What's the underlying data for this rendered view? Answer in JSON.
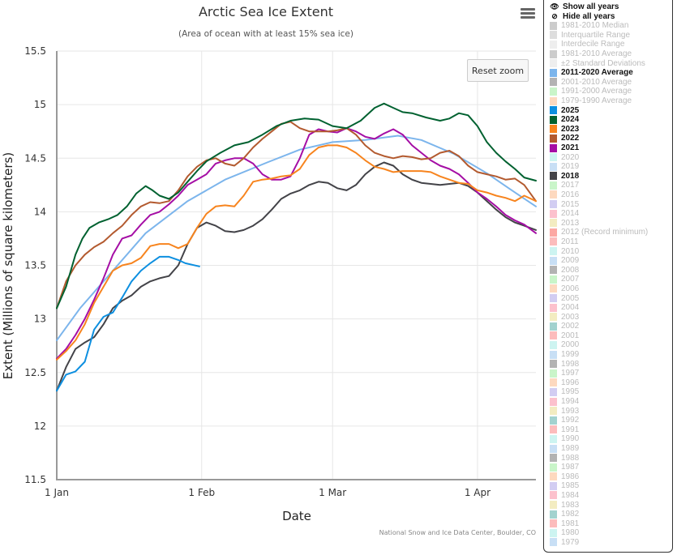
{
  "chart_data": {
    "type": "line",
    "title": "Arctic Sea Ice Extent",
    "subtitle": "(Area of ocean with at least 15% sea ice)",
    "xlabel": "Date",
    "ylabel": "Extent (Millions of square kilometers)",
    "credit": "National Snow and Ice Data Center, Boulder, CO",
    "x_unit": "day of year (0 = 1 Jan)",
    "xlim": [
      0,
      102.5
    ],
    "ylim": [
      11.5,
      15.5
    ],
    "x_ticks": [
      {
        "day": 0,
        "label": "1 Jan"
      },
      {
        "day": 31,
        "label": "1 Feb"
      },
      {
        "day": 59,
        "label": "1 Mar"
      },
      {
        "day": 90,
        "label": "1 Apr"
      }
    ],
    "y_ticks": [
      {
        "value": 15.5,
        "label": "15.5"
      },
      {
        "value": 15,
        "label": "15"
      },
      {
        "value": 14.5,
        "label": "14.5"
      },
      {
        "value": 14,
        "label": "14"
      },
      {
        "value": 13.5,
        "label": "13.5"
      },
      {
        "value": 13,
        "label": "13"
      },
      {
        "value": 12.5,
        "label": "12.5"
      },
      {
        "value": 12,
        "label": "12"
      },
      {
        "value": 11.5,
        "label": "11.5"
      }
    ],
    "grid": true,
    "legend_position": "right",
    "series": [
      {
        "name": "2011-2020 Average",
        "color": "#7cb5ec",
        "x": [
          0,
          5,
          12,
          19,
          28,
          36,
          45,
          52,
          59,
          66,
          73,
          78,
          85,
          92,
          97,
          102.5
        ],
        "y": [
          12.8,
          13.1,
          13.45,
          13.8,
          14.1,
          14.3,
          14.46,
          14.58,
          14.65,
          14.67,
          14.71,
          14.67,
          14.54,
          14.36,
          14.21,
          14.05
        ]
      },
      {
        "name": "2025",
        "color": "#0d8fe0",
        "x": [
          0,
          2,
          4,
          6,
          8,
          10,
          12,
          14,
          16,
          18,
          20,
          22,
          24,
          26,
          27.5,
          30.5
        ],
        "y": [
          12.33,
          12.48,
          12.51,
          12.6,
          12.9,
          13.02,
          13.06,
          13.2,
          13.35,
          13.45,
          13.52,
          13.58,
          13.58,
          13.55,
          13.52,
          13.49
        ]
      },
      {
        "name": "2024",
        "color": "#006130",
        "x": [
          0,
          2,
          4,
          5.5,
          7,
          9,
          11,
          13,
          15,
          17,
          19,
          20.5,
          22,
          24,
          26,
          28,
          30,
          32,
          35,
          38,
          41,
          44,
          47,
          50,
          53,
          56,
          59,
          62,
          65,
          68,
          70,
          72,
          74,
          76,
          79,
          82,
          84,
          86,
          88,
          90,
          92,
          94,
          96,
          98,
          100,
          102.5
        ],
        "y": [
          13.1,
          13.3,
          13.6,
          13.75,
          13.85,
          13.9,
          13.93,
          13.97,
          14.05,
          14.17,
          14.24,
          14.2,
          14.15,
          14.12,
          14.18,
          14.28,
          14.38,
          14.47,
          14.55,
          14.62,
          14.65,
          14.72,
          14.8,
          14.85,
          14.87,
          14.86,
          14.8,
          14.78,
          14.85,
          14.97,
          15.01,
          14.97,
          14.93,
          14.92,
          14.88,
          14.85,
          14.87,
          14.92,
          14.9,
          14.8,
          14.65,
          14.55,
          14.47,
          14.4,
          14.32,
          14.29
        ]
      },
      {
        "name": "2023",
        "color": "#f7841e",
        "x": [
          0,
          2,
          4,
          6,
          8,
          10,
          12,
          14,
          16,
          18,
          20,
          22,
          24,
          26,
          28,
          30,
          32,
          34,
          36,
          38,
          40,
          42,
          44,
          46,
          48,
          50,
          52,
          54,
          56,
          58,
          60,
          62,
          64,
          66,
          68,
          70,
          72,
          74,
          76,
          78,
          80,
          82,
          84,
          86,
          88,
          90,
          92,
          94,
          96,
          98,
          100,
          102.5
        ],
        "y": [
          12.62,
          12.7,
          12.8,
          12.95,
          13.15,
          13.3,
          13.45,
          13.5,
          13.52,
          13.57,
          13.68,
          13.7,
          13.7,
          13.66,
          13.7,
          13.85,
          13.98,
          14.05,
          14.06,
          14.05,
          14.15,
          14.28,
          14.3,
          14.31,
          14.33,
          14.34,
          14.4,
          14.53,
          14.6,
          14.62,
          14.62,
          14.6,
          14.55,
          14.48,
          14.42,
          14.4,
          14.37,
          14.38,
          14.38,
          14.38,
          14.37,
          14.33,
          14.3,
          14.27,
          14.26,
          14.2,
          14.18,
          14.15,
          14.13,
          14.1,
          14.15,
          14.1
        ]
      },
      {
        "name": "2022",
        "color": "#b35a2f",
        "x": [
          0,
          2,
          4,
          6,
          8,
          10,
          12,
          14,
          16,
          18,
          20,
          22,
          24,
          26,
          28,
          30,
          32,
          34,
          36,
          38,
          40,
          42,
          44,
          46,
          48,
          50,
          52,
          54,
          56,
          58,
          60,
          62,
          64,
          66,
          68,
          70,
          72,
          74,
          76,
          78,
          80,
          82,
          84,
          86,
          88,
          90,
          92,
          94,
          96,
          98,
          100,
          102.5
        ],
        "y": [
          13.1,
          13.35,
          13.5,
          13.6,
          13.67,
          13.72,
          13.8,
          13.87,
          13.97,
          14.05,
          14.09,
          14.08,
          14.1,
          14.2,
          14.33,
          14.42,
          14.48,
          14.5,
          14.45,
          14.43,
          14.5,
          14.6,
          14.68,
          14.75,
          14.82,
          14.84,
          14.78,
          14.75,
          14.75,
          14.75,
          14.76,
          14.78,
          14.72,
          14.62,
          14.55,
          14.52,
          14.5,
          14.52,
          14.51,
          14.49,
          14.5,
          14.55,
          14.57,
          14.52,
          14.43,
          14.37,
          14.35,
          14.33,
          14.3,
          14.31,
          14.25,
          14.1
        ]
      },
      {
        "name": "2021",
        "color": "#a50ea5",
        "x": [
          0,
          2,
          4,
          6,
          8,
          10,
          12,
          14,
          16,
          18,
          20,
          22,
          24,
          26,
          28,
          30,
          32,
          34,
          36,
          38,
          40,
          42,
          44,
          46,
          48,
          50,
          52,
          54,
          56,
          58,
          60,
          62,
          64,
          66,
          68,
          70,
          72,
          74,
          76,
          78,
          80,
          82,
          84,
          86,
          88,
          90,
          92,
          94,
          96,
          98,
          100,
          102.5
        ],
        "y": [
          12.63,
          12.72,
          12.85,
          13.0,
          13.18,
          13.38,
          13.6,
          13.75,
          13.78,
          13.88,
          13.97,
          14.0,
          14.07,
          14.15,
          14.25,
          14.3,
          14.35,
          14.45,
          14.48,
          14.5,
          14.5,
          14.45,
          14.35,
          14.3,
          14.3,
          14.33,
          14.5,
          14.72,
          14.77,
          14.75,
          14.74,
          14.78,
          14.75,
          14.7,
          14.68,
          14.73,
          14.77,
          14.72,
          14.62,
          14.55,
          14.48,
          14.43,
          14.4,
          14.35,
          14.27,
          14.18,
          14.12,
          14.05,
          13.97,
          13.92,
          13.88,
          13.8
        ]
      },
      {
        "name": "2018",
        "color": "#434348",
        "x": [
          0,
          2,
          4,
          6,
          8,
          10,
          12,
          14,
          16,
          18,
          20,
          22,
          24,
          26,
          28,
          30,
          32,
          34,
          36,
          38,
          40,
          42,
          44,
          46,
          48,
          50,
          52,
          54,
          56,
          58,
          60,
          62,
          64,
          66,
          68,
          70,
          72,
          74,
          76,
          78,
          80,
          82,
          84,
          86,
          88,
          90,
          92,
          94,
          96,
          98,
          100,
          102.5
        ],
        "y": [
          12.33,
          12.55,
          12.72,
          12.78,
          12.83,
          12.95,
          13.1,
          13.17,
          13.22,
          13.3,
          13.35,
          13.38,
          13.4,
          13.5,
          13.7,
          13.85,
          13.9,
          13.87,
          13.82,
          13.81,
          13.83,
          13.87,
          13.93,
          14.02,
          14.12,
          14.17,
          14.2,
          14.25,
          14.28,
          14.27,
          14.22,
          14.2,
          14.25,
          14.35,
          14.42,
          14.46,
          14.43,
          14.35,
          14.3,
          14.27,
          14.26,
          14.25,
          14.26,
          14.27,
          14.24,
          14.18,
          14.1,
          14.02,
          13.95,
          13.9,
          13.87,
          13.83
        ]
      }
    ]
  },
  "toolbar": {
    "menu_icon": "hamburger-menu-icon",
    "reset_zoom": "Reset zoom"
  },
  "legend": {
    "actions": [
      {
        "label": "Show all years",
        "icon": "eye-icon"
      },
      {
        "label": "Hide all years",
        "icon": "eye-slash-icon"
      }
    ],
    "items": [
      {
        "label": "1981-2010 Median",
        "color": "#cccccc",
        "visible": false
      },
      {
        "label": "Interquartile Range",
        "color": "#dddddd",
        "visible": false
      },
      {
        "label": "Interdecile Range",
        "color": "#eeeeee",
        "visible": false
      },
      {
        "label": "1981-2010 Average",
        "color": "#cccccc",
        "visible": false
      },
      {
        "label": "±2 Standard Deviations",
        "color": "#eeeeee",
        "visible": false
      },
      {
        "label": "2011-2020 Average",
        "color": "#7cb5ec",
        "visible": true
      },
      {
        "label": "2001-2010 Average",
        "color": "#b3b3b3",
        "visible": false
      },
      {
        "label": "1991-2000 Average",
        "color": "#c9f5c9",
        "visible": false
      },
      {
        "label": "1979-1990 Average",
        "color": "#fdd9bf",
        "visible": false
      },
      {
        "label": "2025",
        "color": "#0d8fe0",
        "visible": true
      },
      {
        "label": "2024",
        "color": "#006130",
        "visible": true
      },
      {
        "label": "2023",
        "color": "#f7841e",
        "visible": true
      },
      {
        "label": "2022",
        "color": "#b35a2f",
        "visible": true
      },
      {
        "label": "2021",
        "color": "#a50ea5",
        "visible": true
      },
      {
        "label": "2020",
        "color": "#cdf4f1",
        "visible": false
      },
      {
        "label": "2019",
        "color": "#c8dff5",
        "visible": false
      },
      {
        "label": "2018",
        "color": "#434348",
        "visible": true
      },
      {
        "label": "2017",
        "color": "#c9f5c9",
        "visible": false
      },
      {
        "label": "2016",
        "color": "#fdd9bf",
        "visible": false
      },
      {
        "label": "2015",
        "color": "#d2cdf2",
        "visible": false
      },
      {
        "label": "2014",
        "color": "#fcc1cd",
        "visible": false
      },
      {
        "label": "2013",
        "color": "#f3ecc1",
        "visible": false
      },
      {
        "label": "2012 (Record minimum)",
        "color": "#fca8a3",
        "visible": false
      },
      {
        "label": "2011",
        "color": "#fcbcbc",
        "visible": false
      },
      {
        "label": "2010",
        "color": "#cdf4f1",
        "visible": false
      },
      {
        "label": "2009",
        "color": "#c8dff5",
        "visible": false
      },
      {
        "label": "2008",
        "color": "#b3b3b3",
        "visible": false
      },
      {
        "label": "2007",
        "color": "#c9f5c9",
        "visible": false
      },
      {
        "label": "2006",
        "color": "#fdd9bf",
        "visible": false
      },
      {
        "label": "2005",
        "color": "#d2cdf2",
        "visible": false
      },
      {
        "label": "2004",
        "color": "#fcc1cd",
        "visible": false
      },
      {
        "label": "2003",
        "color": "#f3ecc1",
        "visible": false
      },
      {
        "label": "2002",
        "color": "#a2d2cf",
        "visible": false
      },
      {
        "label": "2001",
        "color": "#fcbcbc",
        "visible": false
      },
      {
        "label": "2000",
        "color": "#cdf4f1",
        "visible": false
      },
      {
        "label": "1999",
        "color": "#c8dff5",
        "visible": false
      },
      {
        "label": "1998",
        "color": "#b3b3b3",
        "visible": false
      },
      {
        "label": "1997",
        "color": "#c9f5c9",
        "visible": false
      },
      {
        "label": "1996",
        "color": "#fdd9bf",
        "visible": false
      },
      {
        "label": "1995",
        "color": "#d2cdf2",
        "visible": false
      },
      {
        "label": "1994",
        "color": "#fcc1cd",
        "visible": false
      },
      {
        "label": "1993",
        "color": "#f3ecc1",
        "visible": false
      },
      {
        "label": "1992",
        "color": "#a2d2cf",
        "visible": false
      },
      {
        "label": "1991",
        "color": "#fcbcbc",
        "visible": false
      },
      {
        "label": "1990",
        "color": "#cdf4f1",
        "visible": false
      },
      {
        "label": "1989",
        "color": "#c8dff5",
        "visible": false
      },
      {
        "label": "1988",
        "color": "#b3b3b3",
        "visible": false
      },
      {
        "label": "1987",
        "color": "#c9f5c9",
        "visible": false
      },
      {
        "label": "1986",
        "color": "#fdd9bf",
        "visible": false
      },
      {
        "label": "1985",
        "color": "#d2cdf2",
        "visible": false
      },
      {
        "label": "1984",
        "color": "#fcc1cd",
        "visible": false
      },
      {
        "label": "1983",
        "color": "#f3ecc1",
        "visible": false
      },
      {
        "label": "1982",
        "color": "#a2d2cf",
        "visible": false
      },
      {
        "label": "1981",
        "color": "#fcbcbc",
        "visible": false
      },
      {
        "label": "1980",
        "color": "#cdf4f1",
        "visible": false
      },
      {
        "label": "1979",
        "color": "#c8dff5",
        "visible": false
      }
    ]
  }
}
